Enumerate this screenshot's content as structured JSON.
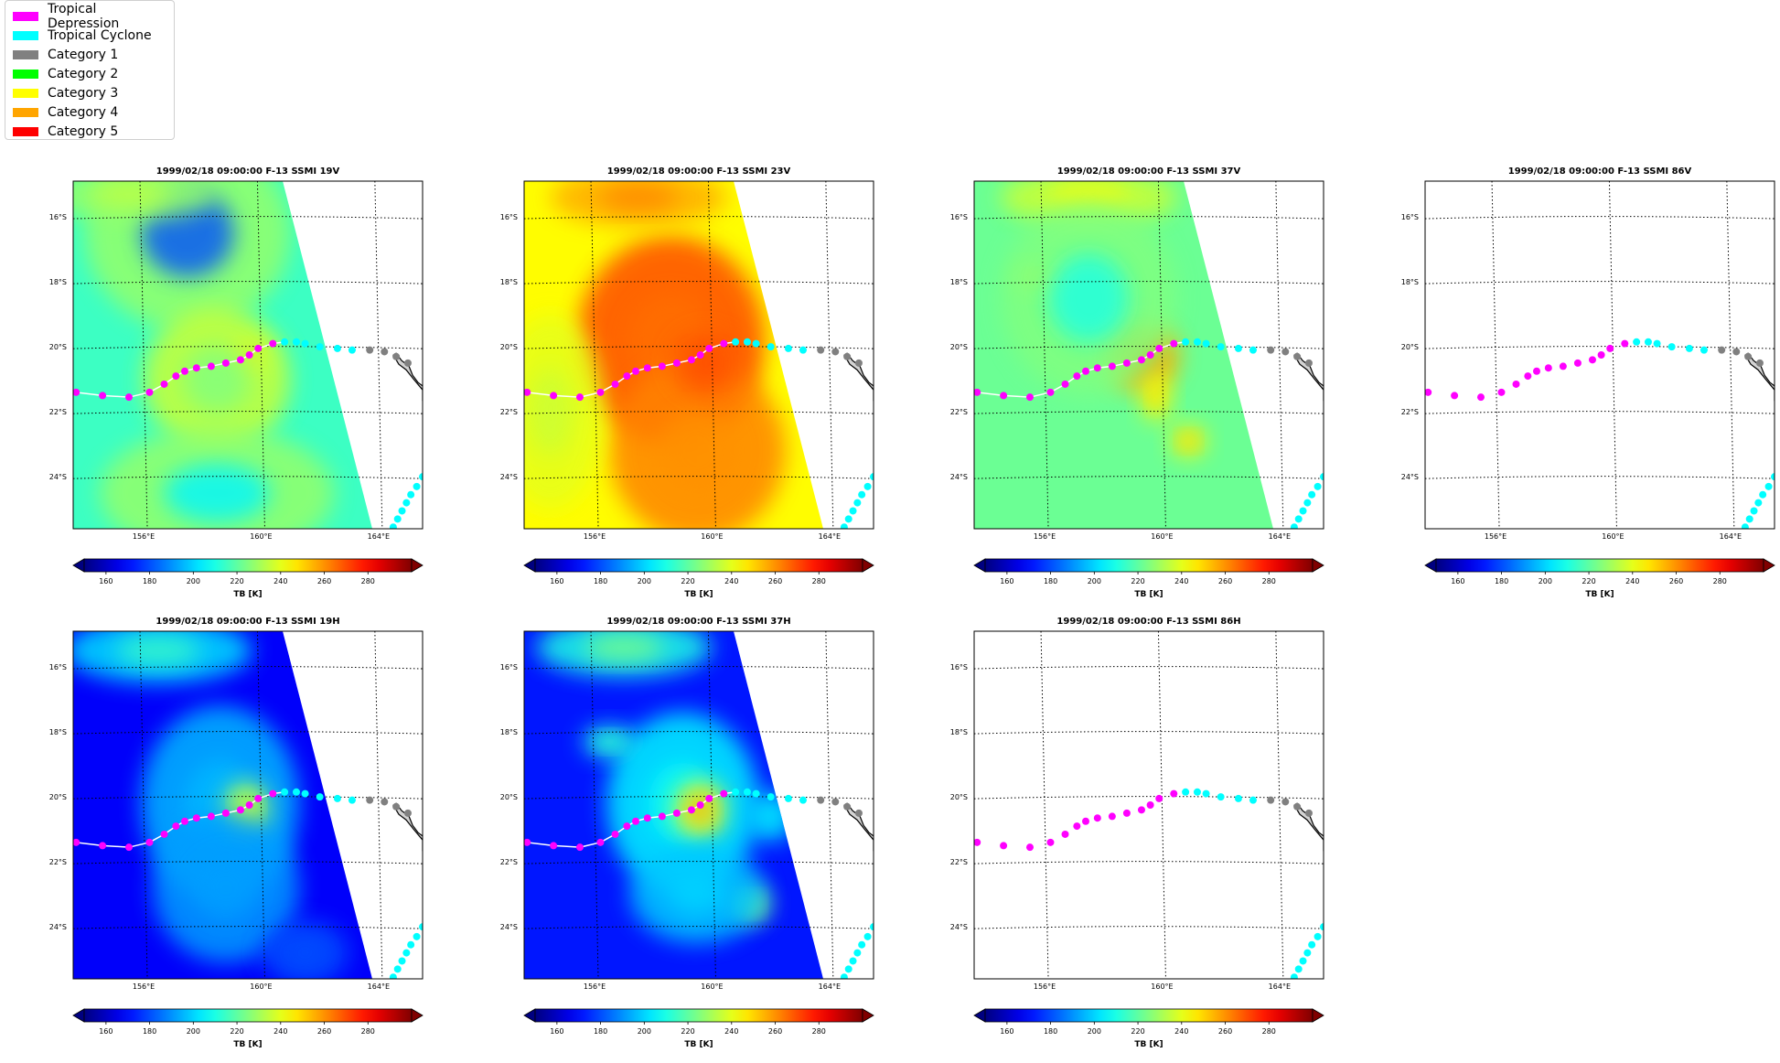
{
  "legend": [
    {
      "label": "Tropical Depression",
      "color": "#ff00ff"
    },
    {
      "label": "Tropical Cyclone",
      "color": "#00ffff"
    },
    {
      "label": "Category 1",
      "color": "#808080"
    },
    {
      "label": "Category 2",
      "color": "#00ff00"
    },
    {
      "label": "Category 3",
      "color": "#ffff00"
    },
    {
      "label": "Category 4",
      "color": "#ffa500"
    },
    {
      "label": "Category 5",
      "color": "#ff0000"
    }
  ],
  "colorbar": {
    "label": "TB [K]",
    "ticks": [
      "160",
      "180",
      "200",
      "220",
      "240",
      "260",
      "280"
    ],
    "range": [
      150,
      300
    ],
    "colormap": "jet",
    "extend": "both"
  },
  "chart_data": [
    {
      "type": "heatmap",
      "title": "1999/02/18 09:00:00  F-13 SSMI 19V",
      "field": "19V",
      "has_data": true,
      "xlabels": [
        "156°E",
        "160°E",
        "164°E"
      ],
      "ylabels": [
        "16°S",
        "18°S",
        "20°S",
        "22°S",
        "24°S"
      ],
      "xlim": [
        153.6,
        165.5
      ],
      "ylim": [
        -25.6,
        -14.9
      ],
      "grid": "dotted",
      "colorbar_label": "TB [K]"
    },
    {
      "type": "heatmap",
      "title": "1999/02/18 09:00:00  F-13 SSMI 23V",
      "field": "23V",
      "has_data": true,
      "xlabels": [
        "156°E",
        "160°E",
        "164°E"
      ],
      "ylabels": [
        "16°S",
        "18°S",
        "20°S",
        "22°S",
        "24°S"
      ],
      "xlim": [
        153.6,
        165.5
      ],
      "ylim": [
        -25.6,
        -14.9
      ],
      "grid": "dotted",
      "colorbar_label": "TB [K]"
    },
    {
      "type": "heatmap",
      "title": "1999/02/18 09:00:00  F-13 SSMI 37V",
      "field": "37V",
      "has_data": true,
      "xlabels": [
        "156°E",
        "160°E",
        "164°E"
      ],
      "ylabels": [
        "16°S",
        "18°S",
        "20°S",
        "22°S",
        "24°S"
      ],
      "xlim": [
        153.6,
        165.5
      ],
      "ylim": [
        -25.6,
        -14.9
      ],
      "grid": "dotted",
      "colorbar_label": "TB [K]"
    },
    {
      "type": "heatmap",
      "title": "1999/02/18 09:00:00  F-13 SSMI 86V",
      "field": "86V",
      "has_data": false,
      "xlabels": [
        "156°E",
        "160°E",
        "164°E"
      ],
      "ylabels": [
        "16°S",
        "18°S",
        "20°S",
        "22°S",
        "24°S"
      ],
      "xlim": [
        153.6,
        165.5
      ],
      "ylim": [
        -25.6,
        -14.9
      ],
      "grid": "dotted",
      "colorbar_label": "TB [K]"
    },
    {
      "type": "heatmap",
      "title": "1999/02/18 09:00:00  F-13 SSMI 19H",
      "field": "19H",
      "has_data": true,
      "xlabels": [
        "156°E",
        "160°E",
        "164°E"
      ],
      "ylabels": [
        "16°S",
        "18°S",
        "20°S",
        "22°S",
        "24°S"
      ],
      "xlim": [
        153.6,
        165.5
      ],
      "ylim": [
        -25.6,
        -14.9
      ],
      "grid": "dotted",
      "colorbar_label": "TB [K]"
    },
    {
      "type": "heatmap",
      "title": "1999/02/18 09:00:00  F-13 SSMI 37H",
      "field": "37H",
      "has_data": true,
      "xlabels": [
        "156°E",
        "160°E",
        "164°E"
      ],
      "ylabels": [
        "16°S",
        "18°S",
        "20°S",
        "22°S",
        "24°S"
      ],
      "xlim": [
        153.6,
        165.5
      ],
      "ylim": [
        -25.6,
        -14.9
      ],
      "grid": "dotted",
      "colorbar_label": "TB [K]"
    },
    {
      "type": "heatmap",
      "title": "1999/02/18 09:00:00  F-13 SSMI 86H",
      "field": "86H",
      "has_data": false,
      "xlabels": [
        "156°E",
        "160°E",
        "164°E"
      ],
      "ylabels": [
        "16°S",
        "18°S",
        "20°S",
        "22°S",
        "24°S"
      ],
      "xlim": [
        153.6,
        165.5
      ],
      "ylim": [
        -25.6,
        -14.9
      ],
      "grid": "dotted",
      "colorbar_label": "TB [K]"
    }
  ],
  "track": [
    {
      "lon": 153.7,
      "lat": -21.4,
      "cat": "TD"
    },
    {
      "lon": 154.6,
      "lat": -21.5,
      "cat": "TD"
    },
    {
      "lon": 155.5,
      "lat": -21.55,
      "cat": "TD"
    },
    {
      "lon": 156.2,
      "lat": -21.4,
      "cat": "TD"
    },
    {
      "lon": 156.7,
      "lat": -21.15,
      "cat": "TD"
    },
    {
      "lon": 157.1,
      "lat": -20.9,
      "cat": "TD"
    },
    {
      "lon": 157.4,
      "lat": -20.75,
      "cat": "TD"
    },
    {
      "lon": 157.8,
      "lat": -20.65,
      "cat": "TD"
    },
    {
      "lon": 158.3,
      "lat": -20.6,
      "cat": "TD"
    },
    {
      "lon": 158.8,
      "lat": -20.5,
      "cat": "TD"
    },
    {
      "lon": 159.3,
      "lat": -20.4,
      "cat": "TD"
    },
    {
      "lon": 159.6,
      "lat": -20.25,
      "cat": "TD"
    },
    {
      "lon": 159.9,
      "lat": -20.05,
      "cat": "TD"
    },
    {
      "lon": 160.4,
      "lat": -19.9,
      "cat": "TD"
    },
    {
      "lon": 160.8,
      "lat": -19.85,
      "cat": "TC"
    },
    {
      "lon": 161.2,
      "lat": -19.85,
      "cat": "TC"
    },
    {
      "lon": 161.5,
      "lat": -19.9,
      "cat": "TC"
    },
    {
      "lon": 162.0,
      "lat": -20.0,
      "cat": "TC"
    },
    {
      "lon": 162.6,
      "lat": -20.05,
      "cat": "TC"
    },
    {
      "lon": 163.1,
      "lat": -20.1,
      "cat": "TC"
    },
    {
      "lon": 163.7,
      "lat": -20.1,
      "cat": "CAT1"
    },
    {
      "lon": 164.2,
      "lat": -20.15,
      "cat": "CAT1"
    },
    {
      "lon": 164.6,
      "lat": -20.3,
      "cat": "CAT1"
    },
    {
      "lon": 165.0,
      "lat": -20.5,
      "cat": "CAT1"
    }
  ],
  "track2": [
    {
      "lon": 165.5,
      "lat": -24.0,
      "cat": "TC"
    },
    {
      "lon": 165.3,
      "lat": -24.3,
      "cat": "TC"
    },
    {
      "lon": 165.1,
      "lat": -24.55,
      "cat": "TC"
    },
    {
      "lon": 164.95,
      "lat": -24.8,
      "cat": "TC"
    },
    {
      "lon": 164.8,
      "lat": -25.05,
      "cat": "TC"
    },
    {
      "lon": 164.65,
      "lat": -25.3,
      "cat": "TC"
    },
    {
      "lon": 164.5,
      "lat": -25.55,
      "cat": "TC"
    }
  ]
}
